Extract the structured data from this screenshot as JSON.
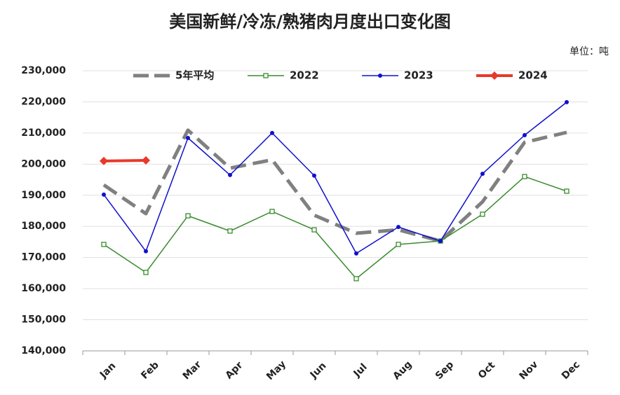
{
  "chart_data": {
    "type": "line",
    "title": "美国新鲜/冷冻/熟猪肉月度出口变化图",
    "unit_label": "单位：吨",
    "categories": [
      "Jan",
      "Feb",
      "Mar",
      "Apr",
      "May",
      "Jun",
      "Jul",
      "Aug",
      "Sep",
      "Oct",
      "Nov",
      "Dec"
    ],
    "series": [
      {
        "name": "5年平均",
        "color": "#808080",
        "style": "dashed",
        "values": [
          193300,
          184100,
          210900,
          198700,
          201400,
          183600,
          177800,
          178900,
          175300,
          187900,
          207000,
          210200
        ]
      },
      {
        "name": "2022",
        "color": "#3a8a2e",
        "marker": "square",
        "values": [
          174200,
          165200,
          183400,
          178500,
          184800,
          178900,
          163200,
          174200,
          175300,
          183900,
          196000,
          191300
        ]
      },
      {
        "name": "2023",
        "color": "#1010cc",
        "marker": "circle",
        "values": [
          190200,
          172000,
          208400,
          196500,
          210000,
          196300,
          171300,
          179800,
          175300,
          196900,
          209300,
          219900
        ]
      },
      {
        "name": "2024",
        "color": "#e8392a",
        "marker": "diamond",
        "values": [
          201000,
          201200,
          null,
          null,
          null,
          null,
          null,
          null,
          null,
          null,
          null,
          null
        ]
      }
    ],
    "ylim": [
      140000,
      230000
    ],
    "yticks": [
      {
        "value": 140000,
        "label": "140,000"
      },
      {
        "value": 150000,
        "label": "150,000"
      },
      {
        "value": 160000,
        "label": "160,000"
      },
      {
        "value": 170000,
        "label": "170,000"
      },
      {
        "value": 180000,
        "label": "180,000"
      },
      {
        "value": 190000,
        "label": "190,000"
      },
      {
        "value": 200000,
        "label": "200,000"
      },
      {
        "value": 210000,
        "label": "210,000"
      },
      {
        "value": 220000,
        "label": "220,000"
      },
      {
        "value": 230000,
        "label": "230,000"
      }
    ],
    "grid": true,
    "legend": "top"
  }
}
